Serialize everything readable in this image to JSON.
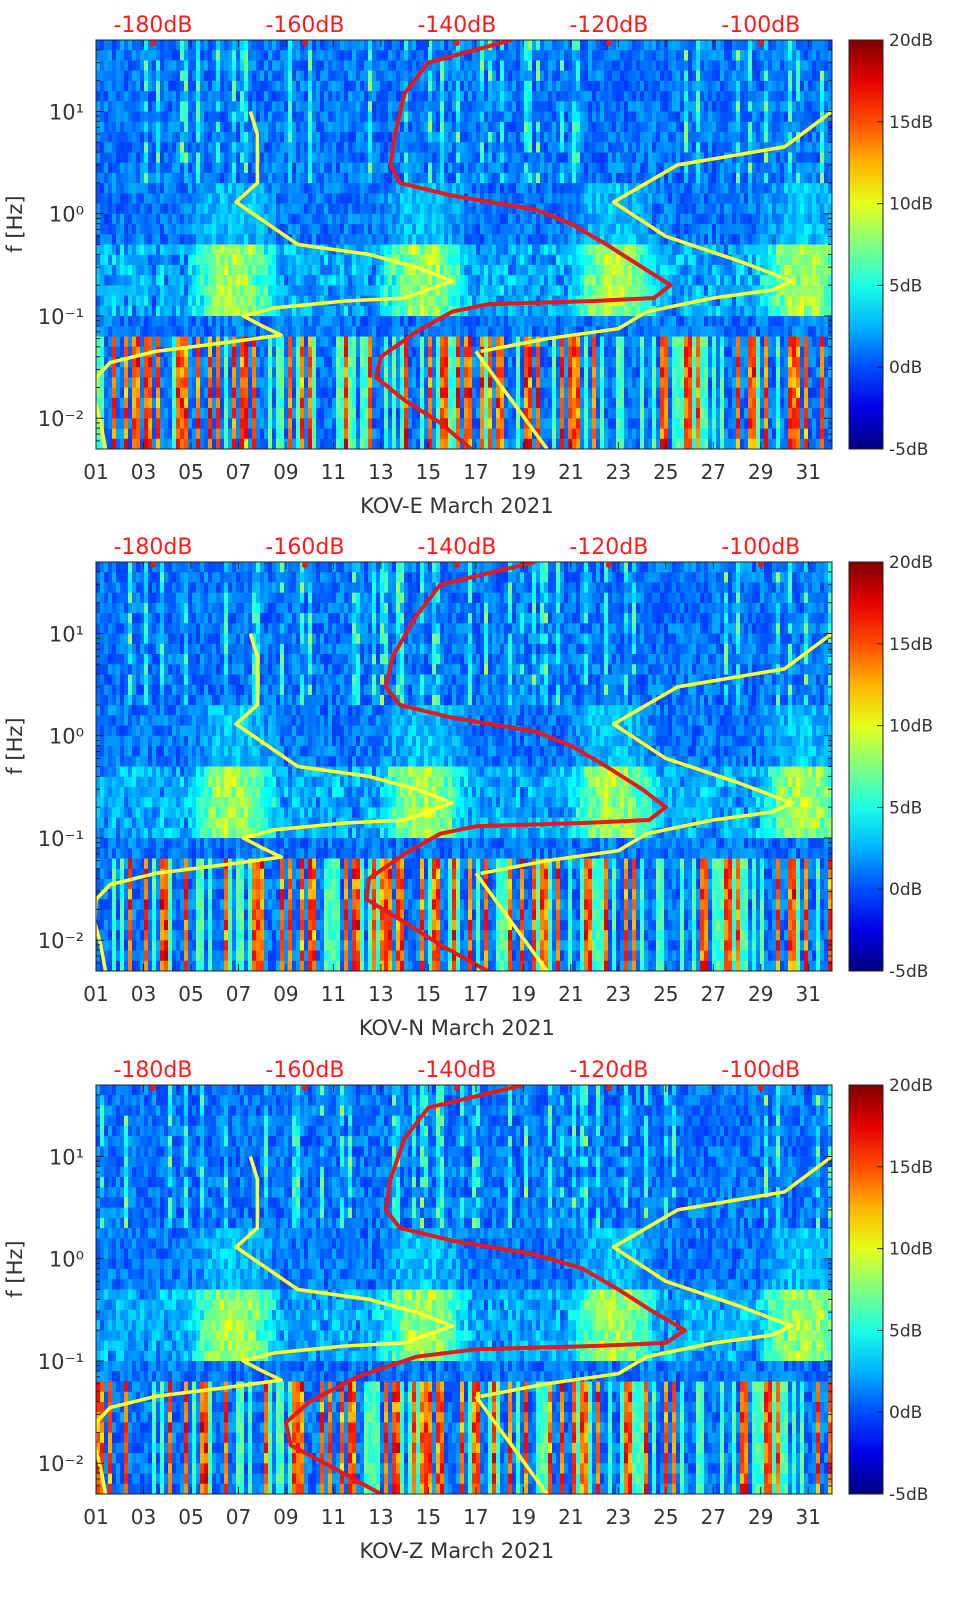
{
  "colors": {
    "spectrogram_cmap": "jet",
    "nlnm_curve": "#ffff33",
    "psd_curve": "#e41a1c",
    "db_scale_text": "#ff1a1a",
    "axis_text": "#333333"
  },
  "chart_data": [
    {
      "type": "heatmap",
      "title": "",
      "xlabel": "KOV-E March 2021",
      "ylabel": "f [Hz]",
      "y_scale": "log",
      "xlim": [
        1,
        32
      ],
      "ylim": [
        0.005,
        50
      ],
      "x_tick_labels": [
        "01",
        "03",
        "05",
        "07",
        "09",
        "11",
        "13",
        "15",
        "17",
        "19",
        "21",
        "23",
        "25",
        "27",
        "29",
        "31"
      ],
      "x_tick_values": [
        1,
        3,
        5,
        7,
        9,
        11,
        13,
        15,
        17,
        19,
        21,
        23,
        25,
        27,
        29,
        31
      ],
      "y_tick_labels": [
        "10^-2",
        "10^-1",
        "10^0",
        "10^1"
      ],
      "y_tick_values": [
        0.01,
        0.1,
        1,
        10
      ],
      "db_scale": {
        "labels": [
          "-180dB",
          "-160dB",
          "-140dB",
          "-120dB",
          "-100dB"
        ],
        "x_positions_days": [
          3.4,
          9.8,
          16.2,
          22.6,
          29.0
        ]
      },
      "colorbar": {
        "labels": [
          "20dB",
          "15dB",
          "10dB",
          "5dB",
          "0dB",
          "-5dB"
        ],
        "values": [
          20,
          15,
          10,
          5,
          0,
          -5
        ]
      },
      "series": [
        {
          "values": [
            [
              7.5,
              10
            ],
            [
              7.8,
              6
            ],
            [
              7.8,
              2
            ],
            [
              6.9,
              1.3
            ],
            [
              9.5,
              0.5
            ],
            [
              12.5,
              0.4
            ],
            [
              14.5,
              0.3
            ],
            [
              16.0,
              0.22
            ],
            [
              14.0,
              0.15
            ],
            [
              11.5,
              0.14
            ],
            [
              8.5,
              0.12
            ],
            [
              7.2,
              0.1
            ],
            [
              8.0,
              0.08
            ],
            [
              8.8,
              0.065
            ],
            [
              6.5,
              0.055
            ],
            [
              3.5,
              0.045
            ],
            [
              1.6,
              0.035
            ],
            [
              1.0,
              0.025
            ],
            [
              0.95,
              0.015
            ],
            [
              1.2,
              0.009
            ],
            [
              1.4,
              0.005
            ]
          ]
        },
        {
          "values": [
            [
              17.0,
              0.045
            ],
            [
              20.0,
              0.005
            ]
          ]
        },
        {
          "values": [
            [
              32.0,
              10
            ],
            [
              30.0,
              4.5
            ],
            [
              25.5,
              3
            ],
            [
              22.8,
              1.3
            ],
            [
              25.0,
              0.6
            ],
            [
              28.0,
              0.35
            ],
            [
              30.3,
              0.22
            ],
            [
              29.5,
              0.18
            ],
            [
              27.0,
              0.15
            ],
            [
              24.2,
              0.11
            ],
            [
              23.0,
              0.075
            ],
            [
              20.0,
              0.06
            ],
            [
              17.2,
              0.045
            ]
          ]
        },
        {
          "values": [
            [
              18.5,
              50
            ],
            [
              15.0,
              30
            ],
            [
              14.0,
              15
            ],
            [
              13.6,
              6
            ],
            [
              13.4,
              3
            ],
            [
              13.8,
              2
            ],
            [
              16.0,
              1.5
            ],
            [
              19.5,
              1.1
            ],
            [
              21.0,
              0.8
            ],
            [
              22.5,
              0.5
            ],
            [
              24.0,
              0.3
            ],
            [
              25.2,
              0.2
            ],
            [
              24.5,
              0.15
            ],
            [
              22.0,
              0.14
            ],
            [
              17.5,
              0.13
            ],
            [
              16.0,
              0.11
            ],
            [
              14.5,
              0.07
            ],
            [
              13.0,
              0.04
            ],
            [
              12.8,
              0.025
            ],
            [
              14.0,
              0.015
            ],
            [
              15.5,
              0.009
            ],
            [
              16.8,
              0.005
            ]
          ]
        }
      ]
    },
    {
      "type": "heatmap",
      "title": "",
      "xlabel": "KOV-N March 2021",
      "ylabel": "f [Hz]",
      "y_scale": "log",
      "xlim": [
        1,
        32
      ],
      "ylim": [
        0.005,
        50
      ],
      "x_tick_labels": [
        "01",
        "03",
        "05",
        "07",
        "09",
        "11",
        "13",
        "15",
        "17",
        "19",
        "21",
        "23",
        "25",
        "27",
        "29",
        "31"
      ],
      "x_tick_values": [
        1,
        3,
        5,
        7,
        9,
        11,
        13,
        15,
        17,
        19,
        21,
        23,
        25,
        27,
        29,
        31
      ],
      "y_tick_labels": [
        "10^-2",
        "10^-1",
        "10^0",
        "10^1"
      ],
      "y_tick_values": [
        0.01,
        0.1,
        1,
        10
      ],
      "db_scale": {
        "labels": [
          "-180dB",
          "-160dB",
          "-140dB",
          "-120dB",
          "-100dB"
        ],
        "x_positions_days": [
          3.4,
          9.8,
          16.2,
          22.6,
          29.0
        ]
      },
      "colorbar": {
        "labels": [
          "20dB",
          "15dB",
          "10dB",
          "5dB",
          "0dB",
          "-5dB"
        ],
        "values": [
          20,
          15,
          10,
          5,
          0,
          -5
        ]
      },
      "series": [
        {
          "values": [
            [
              7.5,
              10
            ],
            [
              7.8,
              6
            ],
            [
              7.8,
              2
            ],
            [
              6.9,
              1.3
            ],
            [
              9.5,
              0.5
            ],
            [
              12.5,
              0.4
            ],
            [
              14.5,
              0.3
            ],
            [
              16.0,
              0.22
            ],
            [
              14.0,
              0.15
            ],
            [
              11.5,
              0.14
            ],
            [
              8.5,
              0.12
            ],
            [
              7.2,
              0.1
            ],
            [
              8.0,
              0.08
            ],
            [
              8.8,
              0.065
            ],
            [
              6.5,
              0.055
            ],
            [
              3.5,
              0.045
            ],
            [
              1.6,
              0.035
            ],
            [
              1.0,
              0.025
            ],
            [
              0.95,
              0.015
            ],
            [
              1.2,
              0.009
            ],
            [
              1.4,
              0.005
            ]
          ]
        },
        {
          "values": [
            [
              17.0,
              0.045
            ],
            [
              20.0,
              0.005
            ]
          ]
        },
        {
          "values": [
            [
              32.0,
              10
            ],
            [
              30.0,
              4.5
            ],
            [
              25.5,
              3
            ],
            [
              22.8,
              1.3
            ],
            [
              25.0,
              0.6
            ],
            [
              28.0,
              0.35
            ],
            [
              30.3,
              0.22
            ],
            [
              29.5,
              0.18
            ],
            [
              27.0,
              0.15
            ],
            [
              24.2,
              0.11
            ],
            [
              23.0,
              0.075
            ],
            [
              20.0,
              0.06
            ],
            [
              17.2,
              0.045
            ]
          ]
        },
        {
          "values": [
            [
              19.5,
              50
            ],
            [
              15.5,
              30
            ],
            [
              14.5,
              15
            ],
            [
              13.5,
              6
            ],
            [
              13.2,
              3
            ],
            [
              13.8,
              2
            ],
            [
              16.0,
              1.5
            ],
            [
              19.5,
              1.1
            ],
            [
              21.0,
              0.8
            ],
            [
              22.5,
              0.5
            ],
            [
              24.0,
              0.3
            ],
            [
              25.0,
              0.2
            ],
            [
              24.3,
              0.15
            ],
            [
              21.5,
              0.14
            ],
            [
              17.0,
              0.13
            ],
            [
              15.5,
              0.11
            ],
            [
              14.0,
              0.07
            ],
            [
              12.5,
              0.04
            ],
            [
              12.4,
              0.025
            ],
            [
              14.0,
              0.015
            ],
            [
              15.5,
              0.009
            ],
            [
              17.5,
              0.005
            ]
          ]
        }
      ]
    },
    {
      "type": "heatmap",
      "title": "",
      "xlabel": "KOV-Z March 2021",
      "ylabel": "f [Hz]",
      "y_scale": "log",
      "xlim": [
        1,
        32
      ],
      "ylim": [
        0.005,
        50
      ],
      "x_tick_labels": [
        "01",
        "03",
        "05",
        "07",
        "09",
        "11",
        "13",
        "15",
        "17",
        "19",
        "21",
        "23",
        "25",
        "27",
        "29",
        "31"
      ],
      "x_tick_values": [
        1,
        3,
        5,
        7,
        9,
        11,
        13,
        15,
        17,
        19,
        21,
        23,
        25,
        27,
        29,
        31
      ],
      "y_tick_labels": [
        "10^-2",
        "10^-1",
        "10^0",
        "10^1"
      ],
      "y_tick_values": [
        0.01,
        0.1,
        1,
        10
      ],
      "db_scale": {
        "labels": [
          "-180dB",
          "-160dB",
          "-140dB",
          "-120dB",
          "-100dB"
        ],
        "x_positions_days": [
          3.4,
          9.8,
          16.2,
          22.6,
          29.0
        ]
      },
      "colorbar": {
        "labels": [
          "20dB",
          "15dB",
          "10dB",
          "5dB",
          "0dB",
          "-5dB"
        ],
        "values": [
          20,
          15,
          10,
          5,
          0,
          -5
        ]
      },
      "series": [
        {
          "values": [
            [
              7.5,
              10
            ],
            [
              7.8,
              6
            ],
            [
              7.8,
              2
            ],
            [
              6.9,
              1.3
            ],
            [
              9.5,
              0.5
            ],
            [
              12.5,
              0.4
            ],
            [
              14.5,
              0.3
            ],
            [
              16.0,
              0.22
            ],
            [
              14.0,
              0.15
            ],
            [
              11.5,
              0.14
            ],
            [
              8.5,
              0.12
            ],
            [
              7.2,
              0.1
            ],
            [
              8.0,
              0.08
            ],
            [
              8.8,
              0.065
            ],
            [
              6.5,
              0.055
            ],
            [
              3.5,
              0.045
            ],
            [
              1.6,
              0.035
            ],
            [
              1.0,
              0.025
            ],
            [
              0.95,
              0.015
            ],
            [
              1.2,
              0.009
            ],
            [
              1.4,
              0.005
            ]
          ]
        },
        {
          "values": [
            [
              17.0,
              0.045
            ],
            [
              20.0,
              0.005
            ]
          ]
        },
        {
          "values": [
            [
              32.0,
              10
            ],
            [
              30.0,
              4.5
            ],
            [
              25.5,
              3
            ],
            [
              22.8,
              1.3
            ],
            [
              25.0,
              0.6
            ],
            [
              28.0,
              0.35
            ],
            [
              30.3,
              0.22
            ],
            [
              29.5,
              0.18
            ],
            [
              27.0,
              0.15
            ],
            [
              24.2,
              0.11
            ],
            [
              23.0,
              0.075
            ],
            [
              20.0,
              0.06
            ],
            [
              17.2,
              0.045
            ]
          ]
        },
        {
          "values": [
            [
              19.0,
              50
            ],
            [
              15.0,
              30
            ],
            [
              14.0,
              15
            ],
            [
              13.4,
              6
            ],
            [
              13.2,
              3
            ],
            [
              13.8,
              2
            ],
            [
              16.0,
              1.5
            ],
            [
              19.5,
              1.1
            ],
            [
              21.5,
              0.8
            ],
            [
              23.0,
              0.5
            ],
            [
              24.5,
              0.3
            ],
            [
              25.8,
              0.2
            ],
            [
              25.0,
              0.15
            ],
            [
              22.0,
              0.14
            ],
            [
              17.0,
              0.13
            ],
            [
              14.5,
              0.11
            ],
            [
              12.0,
              0.07
            ],
            [
              10.0,
              0.04
            ],
            [
              9.0,
              0.025
            ],
            [
              9.2,
              0.015
            ],
            [
              11.0,
              0.009
            ],
            [
              13.0,
              0.005
            ]
          ]
        }
      ]
    }
  ]
}
